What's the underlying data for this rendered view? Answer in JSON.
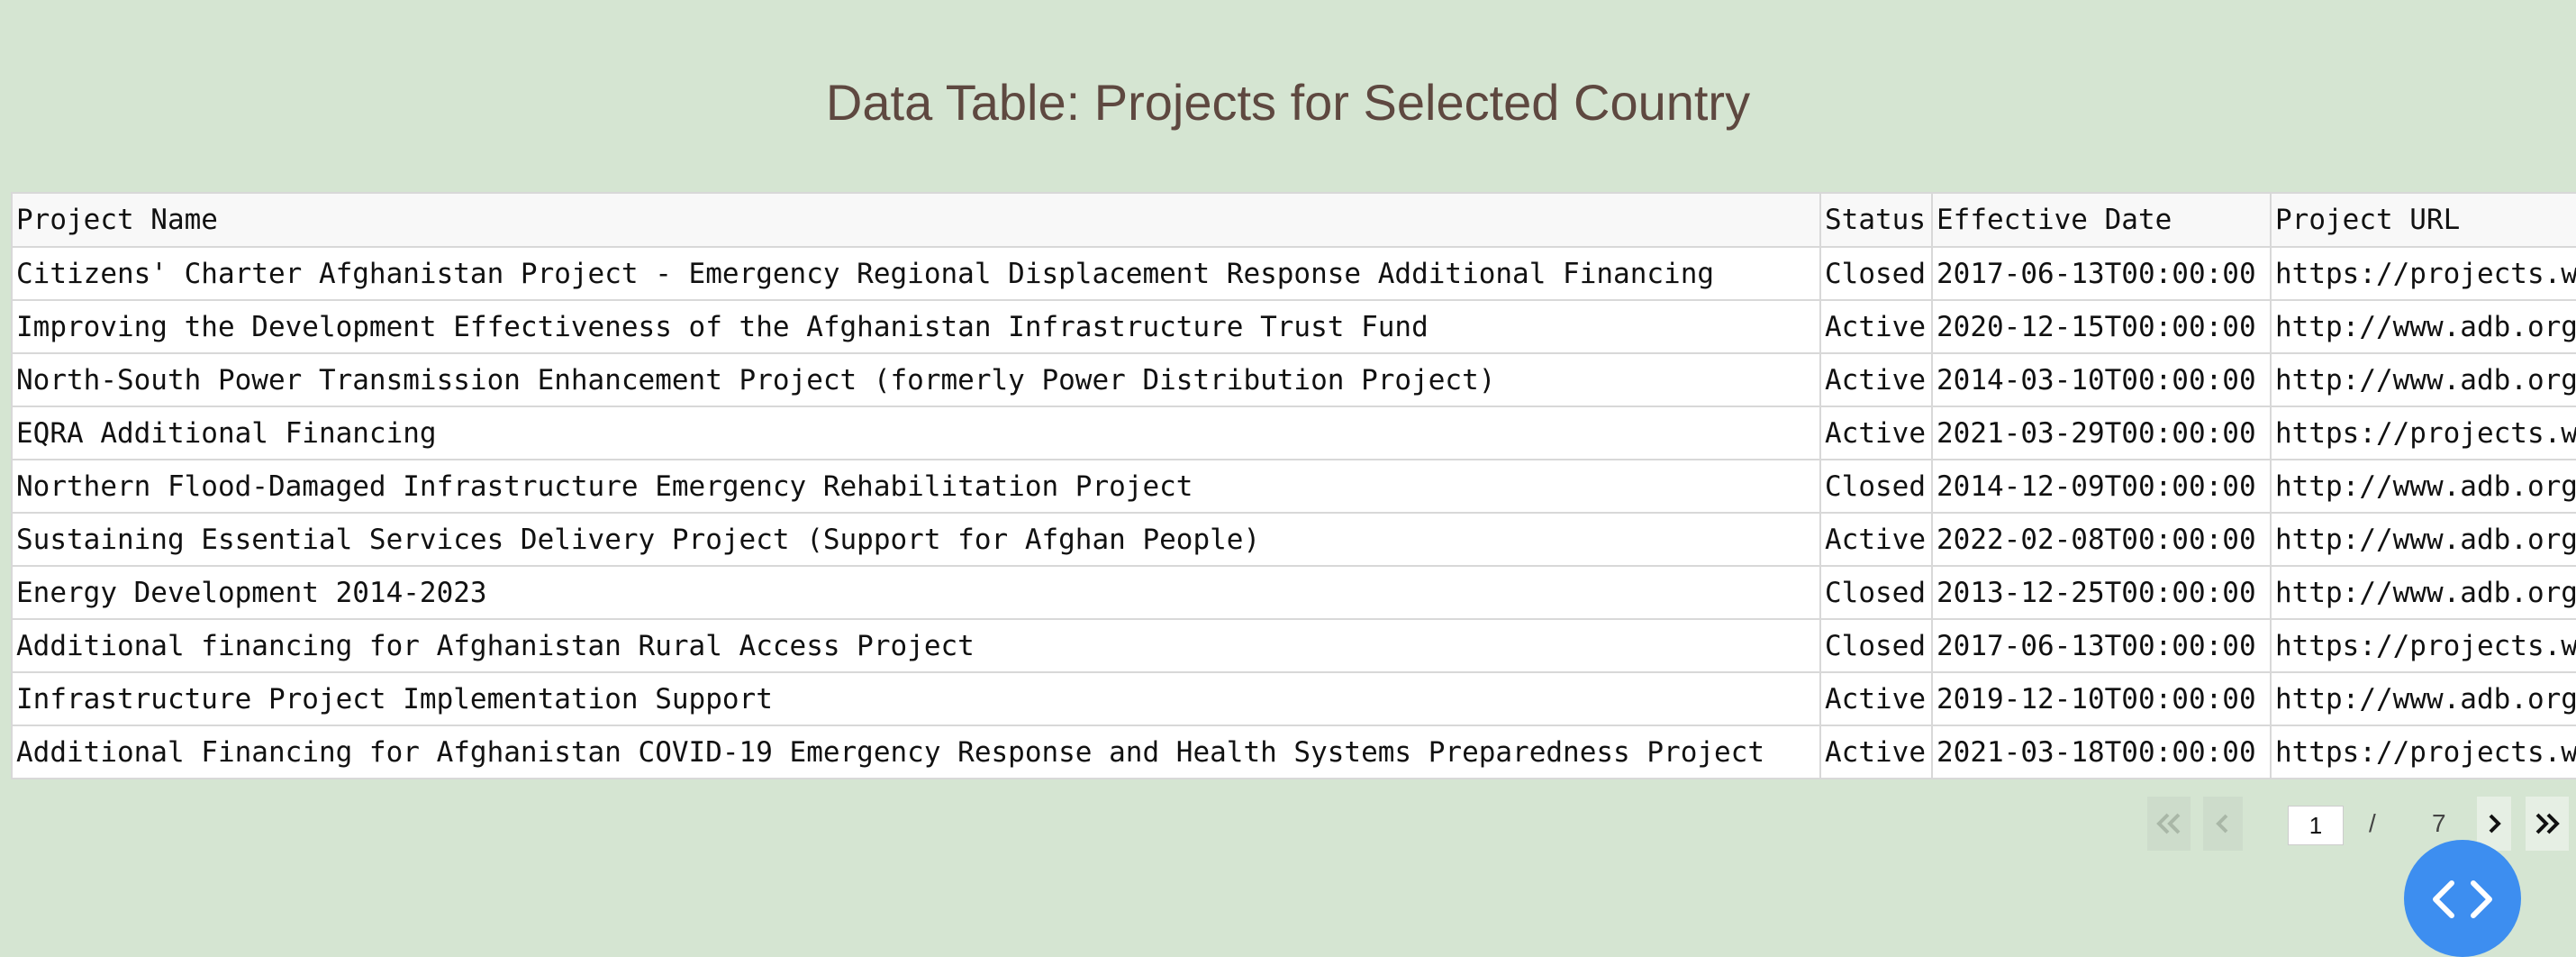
{
  "page": {
    "title": "Data Table: Projects for Selected Country"
  },
  "table": {
    "columns": [
      "Project Name",
      "Status",
      "Effective Date",
      "Project URL"
    ],
    "rows": [
      {
        "name": "Citizens' Charter Afghanistan Project - Emergency Regional Displacement Response Additional Financing",
        "status": "Closed",
        "date": "2017-06-13T00:00:00",
        "url": "https://projects.w"
      },
      {
        "name": "Improving the Development Effectiveness of the Afghanistan Infrastructure Trust Fund",
        "status": "Active",
        "date": "2020-12-15T00:00:00",
        "url": "http://www.adb.org"
      },
      {
        "name": "North-South Power Transmission Enhancement Project (formerly Power Distribution Project)",
        "status": "Active",
        "date": "2014-03-10T00:00:00",
        "url": "http://www.adb.org"
      },
      {
        "name": "EQRA Additional Financing",
        "status": "Active",
        "date": "2021-03-29T00:00:00",
        "url": "https://projects.w"
      },
      {
        "name": "Northern Flood-Damaged Infrastructure Emergency Rehabilitation Project",
        "status": "Closed",
        "date": "2014-12-09T00:00:00",
        "url": "http://www.adb.org"
      },
      {
        "name": "Sustaining Essential Services Delivery Project (Support for Afghan People)",
        "status": "Active",
        "date": "2022-02-08T00:00:00",
        "url": "http://www.adb.org"
      },
      {
        "name": "Energy Development 2014-2023",
        "status": "Closed",
        "date": "2013-12-25T00:00:00",
        "url": "http://www.adb.org"
      },
      {
        "name": "Additional financing for Afghanistan Rural Access Project",
        "status": "Closed",
        "date": "2017-06-13T00:00:00",
        "url": "https://projects.w"
      },
      {
        "name": "Infrastructure Project Implementation Support",
        "status": "Active",
        "date": "2019-12-10T00:00:00",
        "url": "http://www.adb.org"
      },
      {
        "name": "Additional Financing for Afghanistan COVID-19 Emergency Response and Health Systems Preparedness Project",
        "status": "Active",
        "date": "2021-03-18T00:00:00",
        "url": "https://projects.w"
      }
    ]
  },
  "pagination": {
    "current_page": "1",
    "separator": "/",
    "total_pages": "7"
  },
  "colors": {
    "background": "#d5e5d2",
    "title": "#5e4840",
    "fab": "#3d8ef0"
  },
  "icons": {
    "first_page": "double-chevron-left-icon",
    "prev_page": "chevron-left-icon",
    "next_page": "chevron-right-icon",
    "last_page": "double-chevron-right-icon",
    "fab": "code-icon"
  }
}
